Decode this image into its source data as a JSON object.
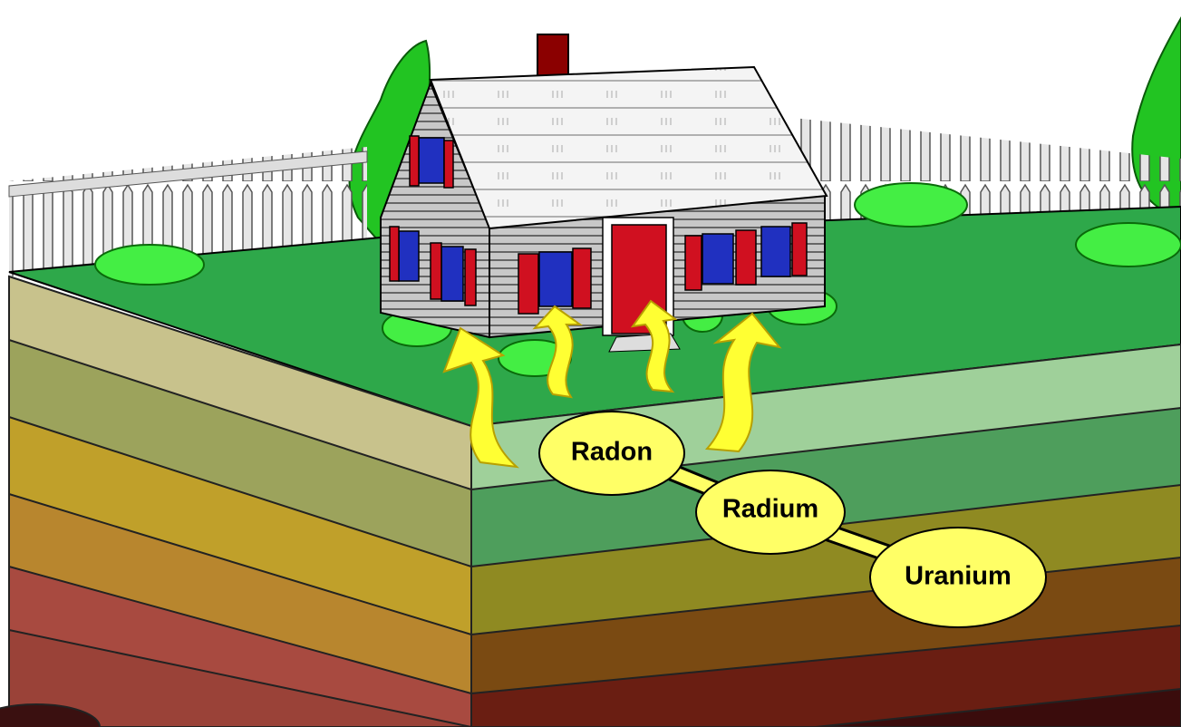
{
  "nodes": [
    {
      "label": "Radon"
    },
    {
      "label": "Radium"
    },
    {
      "label": "Uranium"
    }
  ]
}
